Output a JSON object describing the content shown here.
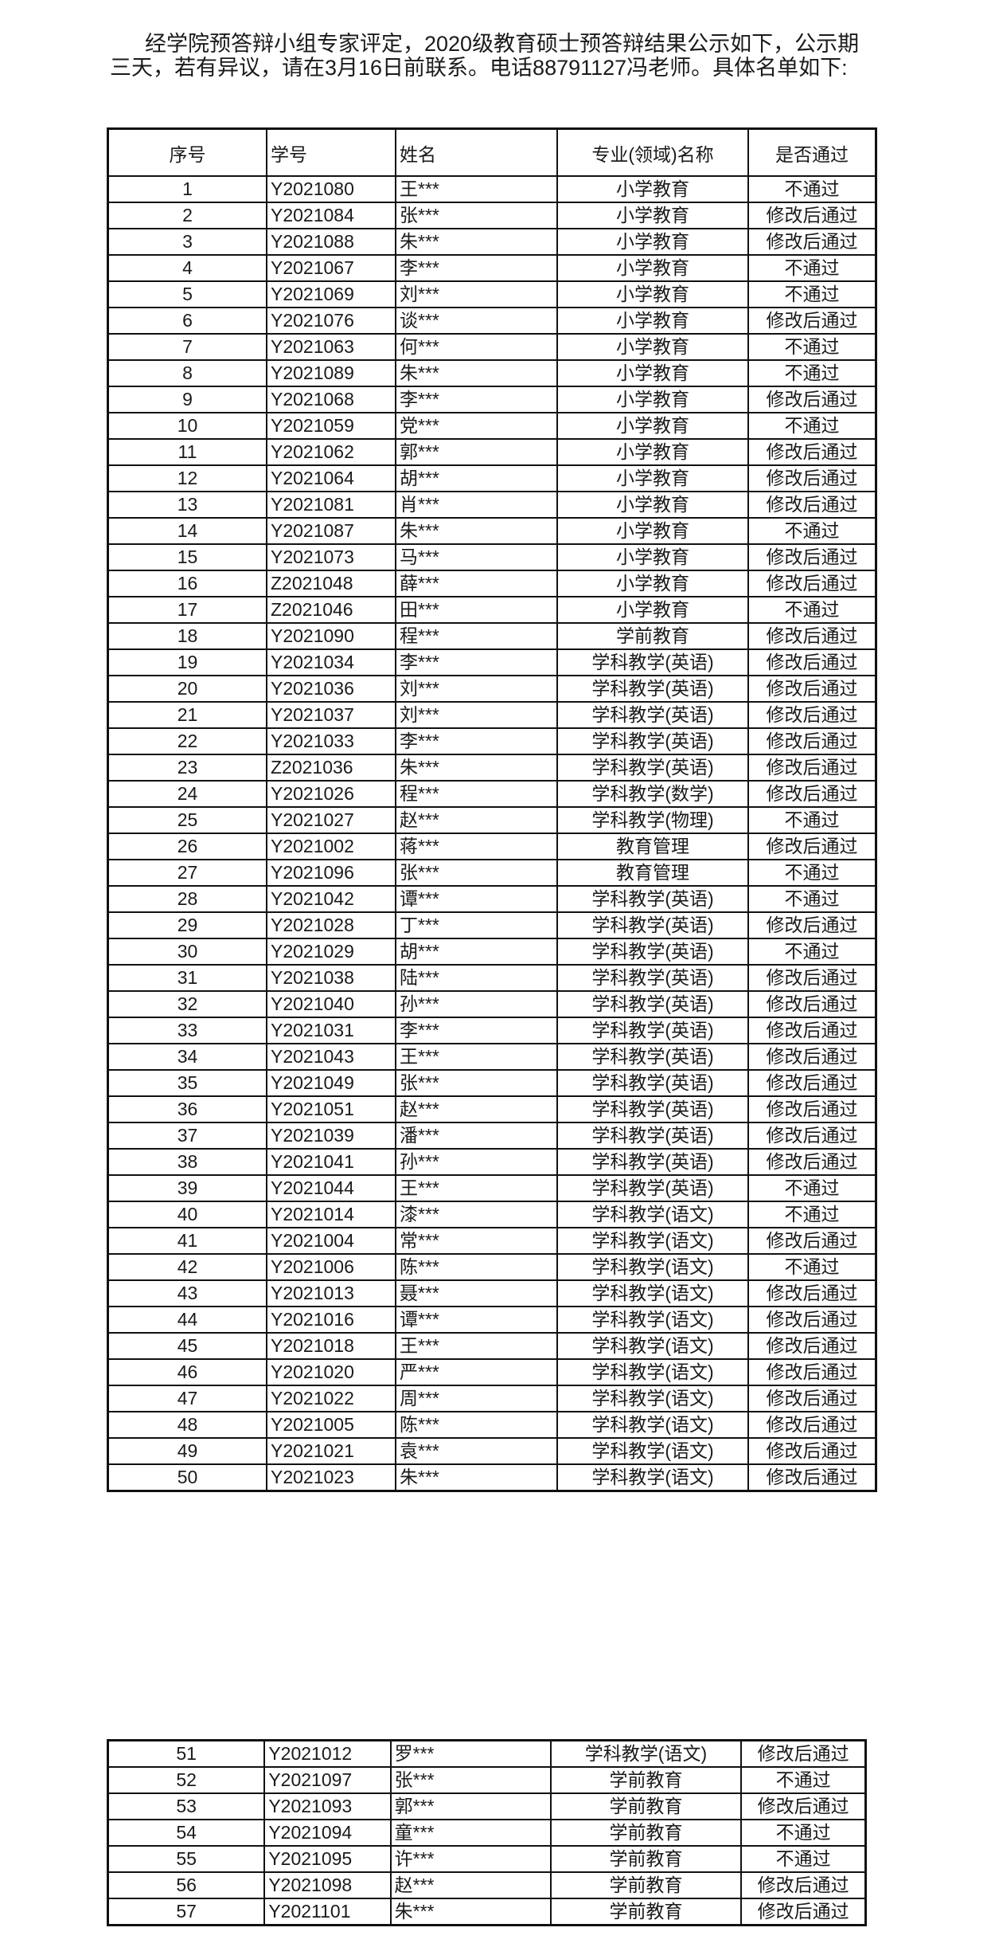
{
  "intro": "经学院预答辩小组专家评定，2020级教育硕士预答辩结果公示如下，公示期三天，若有异议，请在3月16日前联系。电话88791127冯老师。具体名单如下:",
  "headers": [
    "序号",
    "学号",
    "姓名",
    "专业(领域)名称",
    "是否通过"
  ],
  "rows": [
    [
      "1",
      "Y2021080",
      "王***",
      "小学教育",
      "不通过"
    ],
    [
      "2",
      "Y2021084",
      "张***",
      "小学教育",
      "修改后通过"
    ],
    [
      "3",
      "Y2021088",
      "朱***",
      "小学教育",
      "修改后通过"
    ],
    [
      "4",
      "Y2021067",
      "李***",
      "小学教育",
      "不通过"
    ],
    [
      "5",
      "Y2021069",
      "刘***",
      "小学教育",
      "不通过"
    ],
    [
      "6",
      "Y2021076",
      "谈***",
      "小学教育",
      "修改后通过"
    ],
    [
      "7",
      "Y2021063",
      "何***",
      "小学教育",
      "不通过"
    ],
    [
      "8",
      "Y2021089",
      "朱***",
      "小学教育",
      "不通过"
    ],
    [
      "9",
      "Y2021068",
      "李***",
      "小学教育",
      "修改后通过"
    ],
    [
      "10",
      "Y2021059",
      "党***",
      "小学教育",
      "不通过"
    ],
    [
      "11",
      "Y2021062",
      "郭***",
      "小学教育",
      "修改后通过"
    ],
    [
      "12",
      "Y2021064",
      "胡***",
      "小学教育",
      "修改后通过"
    ],
    [
      "13",
      "Y2021081",
      "肖***",
      "小学教育",
      "修改后通过"
    ],
    [
      "14",
      "Y2021087",
      "朱***",
      "小学教育",
      "不通过"
    ],
    [
      "15",
      "Y2021073",
      "马***",
      "小学教育",
      "修改后通过"
    ],
    [
      "16",
      "Z2021048",
      "薛***",
      "小学教育",
      "修改后通过"
    ],
    [
      "17",
      "Z2021046",
      "田***",
      "小学教育",
      "不通过"
    ],
    [
      "18",
      "Y2021090",
      "程***",
      "学前教育",
      "修改后通过"
    ],
    [
      "19",
      "Y2021034",
      "李***",
      "学科教学(英语)",
      "修改后通过"
    ],
    [
      "20",
      "Y2021036",
      "刘***",
      "学科教学(英语)",
      "修改后通过"
    ],
    [
      "21",
      "Y2021037",
      "刘***",
      "学科教学(英语)",
      "修改后通过"
    ],
    [
      "22",
      "Y2021033",
      "李***",
      "学科教学(英语)",
      "修改后通过"
    ],
    [
      "23",
      "Z2021036",
      "朱***",
      "学科教学(英语)",
      "修改后通过"
    ],
    [
      "24",
      "Y2021026",
      "程***",
      "学科教学(数学)",
      "修改后通过"
    ],
    [
      "25",
      "Y2021027",
      "赵***",
      "学科教学(物理)",
      "不通过"
    ],
    [
      "26",
      "Y2021002",
      "蒋***",
      "教育管理",
      "修改后通过"
    ],
    [
      "27",
      "Y2021096",
      "张***",
      "教育管理",
      "不通过"
    ],
    [
      "28",
      "Y2021042",
      "谭***",
      "学科教学(英语)",
      "不通过"
    ],
    [
      "29",
      "Y2021028",
      "丁***",
      "学科教学(英语)",
      "修改后通过"
    ],
    [
      "30",
      "Y2021029",
      "胡***",
      "学科教学(英语)",
      "不通过"
    ],
    [
      "31",
      "Y2021038",
      "陆***",
      "学科教学(英语)",
      "修改后通过"
    ],
    [
      "32",
      "Y2021040",
      "孙***",
      "学科教学(英语)",
      "修改后通过"
    ],
    [
      "33",
      "Y2021031",
      "李***",
      "学科教学(英语)",
      "修改后通过"
    ],
    [
      "34",
      "Y2021043",
      "王***",
      "学科教学(英语)",
      "修改后通过"
    ],
    [
      "35",
      "Y2021049",
      "张***",
      "学科教学(英语)",
      "修改后通过"
    ],
    [
      "36",
      "Y2021051",
      "赵***",
      "学科教学(英语)",
      "修改后通过"
    ],
    [
      "37",
      "Y2021039",
      "潘***",
      "学科教学(英语)",
      "修改后通过"
    ],
    [
      "38",
      "Y2021041",
      "孙***",
      "学科教学(英语)",
      "修改后通过"
    ],
    [
      "39",
      "Y2021044",
      "王***",
      "学科教学(英语)",
      "不通过"
    ],
    [
      "40",
      "Y2021014",
      "漆***",
      "学科教学(语文)",
      "不通过"
    ],
    [
      "41",
      "Y2021004",
      "常***",
      "学科教学(语文)",
      "修改后通过"
    ],
    [
      "42",
      "Y2021006",
      "陈***",
      "学科教学(语文)",
      "不通过"
    ],
    [
      "43",
      "Y2021013",
      "聂***",
      "学科教学(语文)",
      "修改后通过"
    ],
    [
      "44",
      "Y2021016",
      "谭***",
      "学科教学(语文)",
      "修改后通过"
    ],
    [
      "45",
      "Y2021018",
      "王***",
      "学科教学(语文)",
      "修改后通过"
    ],
    [
      "46",
      "Y2021020",
      "严***",
      "学科教学(语文)",
      "修改后通过"
    ],
    [
      "47",
      "Y2021022",
      "周***",
      "学科教学(语文)",
      "修改后通过"
    ],
    [
      "48",
      "Y2021005",
      "陈***",
      "学科教学(语文)",
      "修改后通过"
    ],
    [
      "49",
      "Y2021021",
      "袁***",
      "学科教学(语文)",
      "修改后通过"
    ],
    [
      "50",
      "Y2021023",
      "朱***",
      "学科教学(语文)",
      "修改后通过"
    ]
  ],
  "rows_page2": [
    [
      "51",
      "Y2021012",
      "罗***",
      "学科教学(语文)",
      "修改后通过"
    ],
    [
      "52",
      "Y2021097",
      "张***",
      "学前教育",
      "不通过"
    ],
    [
      "53",
      "Y2021093",
      "郭***",
      "学前教育",
      "修改后通过"
    ],
    [
      "54",
      "Y2021094",
      "童***",
      "学前教育",
      "不通过"
    ],
    [
      "55",
      "Y2021095",
      "许***",
      "学前教育",
      "不通过"
    ],
    [
      "56",
      "Y2021098",
      "赵***",
      "学前教育",
      "修改后通过"
    ],
    [
      "57",
      "Y2021101",
      "朱***",
      "学前教育",
      "修改后通过"
    ]
  ]
}
